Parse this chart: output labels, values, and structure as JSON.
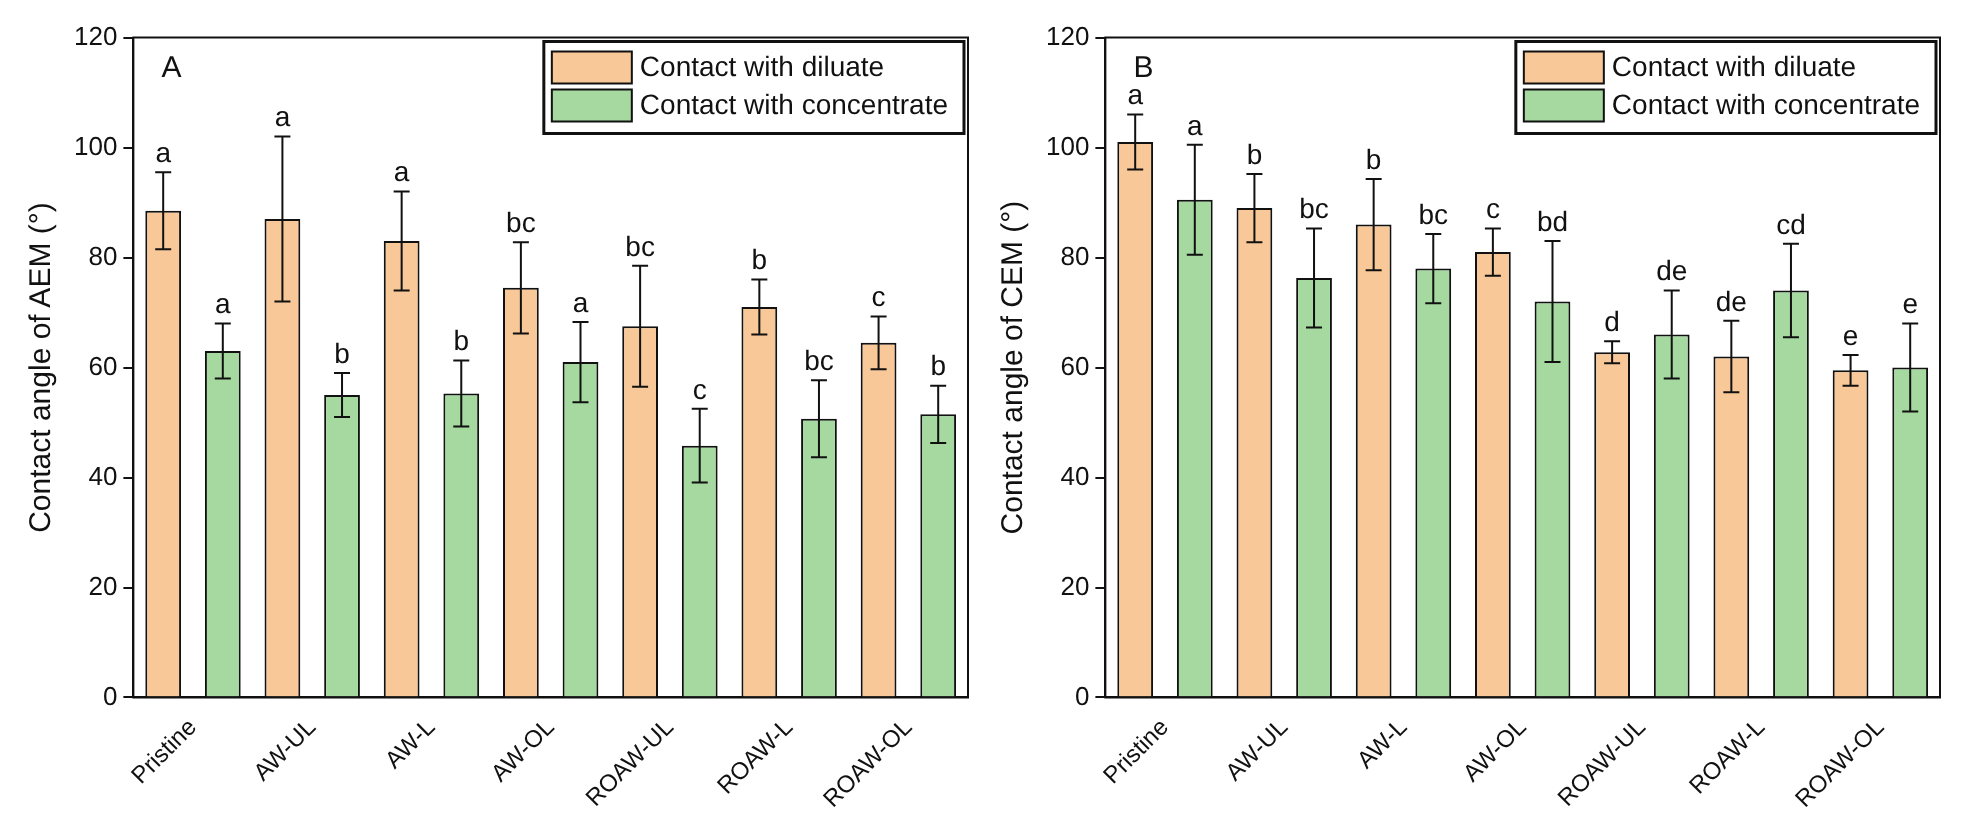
{
  "chart_data": [
    {
      "type": "bar",
      "ylabel": "Contact angle of AEM (°)",
      "annotations": [
        "A"
      ],
      "categories": [
        "Pristine",
        "AW-UL",
        "AW-L",
        "AW-OL",
        "ROAW-UL",
        "ROAW-L",
        "ROAW-OL"
      ],
      "ylim": [
        0,
        120
      ],
      "yticks": [
        0,
        20,
        40,
        60,
        80,
        100,
        120
      ],
      "grid": false,
      "legend": "top right",
      "series": [
        {
          "name": "Contact with diluate",
          "color": "#f9c898",
          "values": [
            88.5,
            87,
            83,
            74.5,
            67.5,
            71,
            64.5
          ],
          "errors": [
            7,
            15,
            9,
            8.3,
            11,
            5,
            4.8
          ],
          "value_labels": [
            "a",
            "a",
            "a",
            "bc",
            "bc",
            "b",
            "c"
          ]
        },
        {
          "name": "Contact with concentrate",
          "color": "#a5d9a0",
          "values": [
            63,
            55,
            55.3,
            61,
            45.8,
            50.7,
            51.5
          ],
          "errors": [
            5,
            4,
            6,
            7.3,
            6.7,
            7,
            5.2
          ],
          "value_labels": [
            "a",
            "b",
            "b",
            "a",
            "c",
            "bc",
            "b"
          ]
        }
      ]
    },
    {
      "type": "bar",
      "ylabel": "Contact angle of CEM (°)",
      "annotations": [
        "B"
      ],
      "categories": [
        "Pristine",
        "AW-UL",
        "AW-L",
        "AW-OL",
        "ROAW-UL",
        "ROAW-L",
        "ROAW-OL"
      ],
      "ylim": [
        0,
        120
      ],
      "yticks": [
        0,
        20,
        40,
        60,
        80,
        100,
        120
      ],
      "grid": false,
      "legend": "top right",
      "series": [
        {
          "name": "Contact with diluate",
          "color": "#f9c898",
          "values": [
            101,
            89,
            86,
            81,
            62.8,
            62,
            59.5
          ],
          "errors": [
            5,
            6.2,
            8.3,
            4.3,
            2,
            6.5,
            2.8
          ],
          "value_labels": [
            "a",
            "b",
            "b",
            "c",
            "d",
            "de",
            "e"
          ]
        },
        {
          "name": "Contact with concentrate",
          "color": "#a5d9a0",
          "values": [
            90.5,
            76.3,
            78,
            72,
            66,
            74,
            60
          ],
          "errors": [
            10,
            9,
            6.3,
            11,
            8,
            8.5,
            8
          ],
          "value_labels": [
            "a",
            "bc",
            "bc",
            "bd",
            "de",
            "cd",
            "e"
          ]
        }
      ]
    }
  ]
}
